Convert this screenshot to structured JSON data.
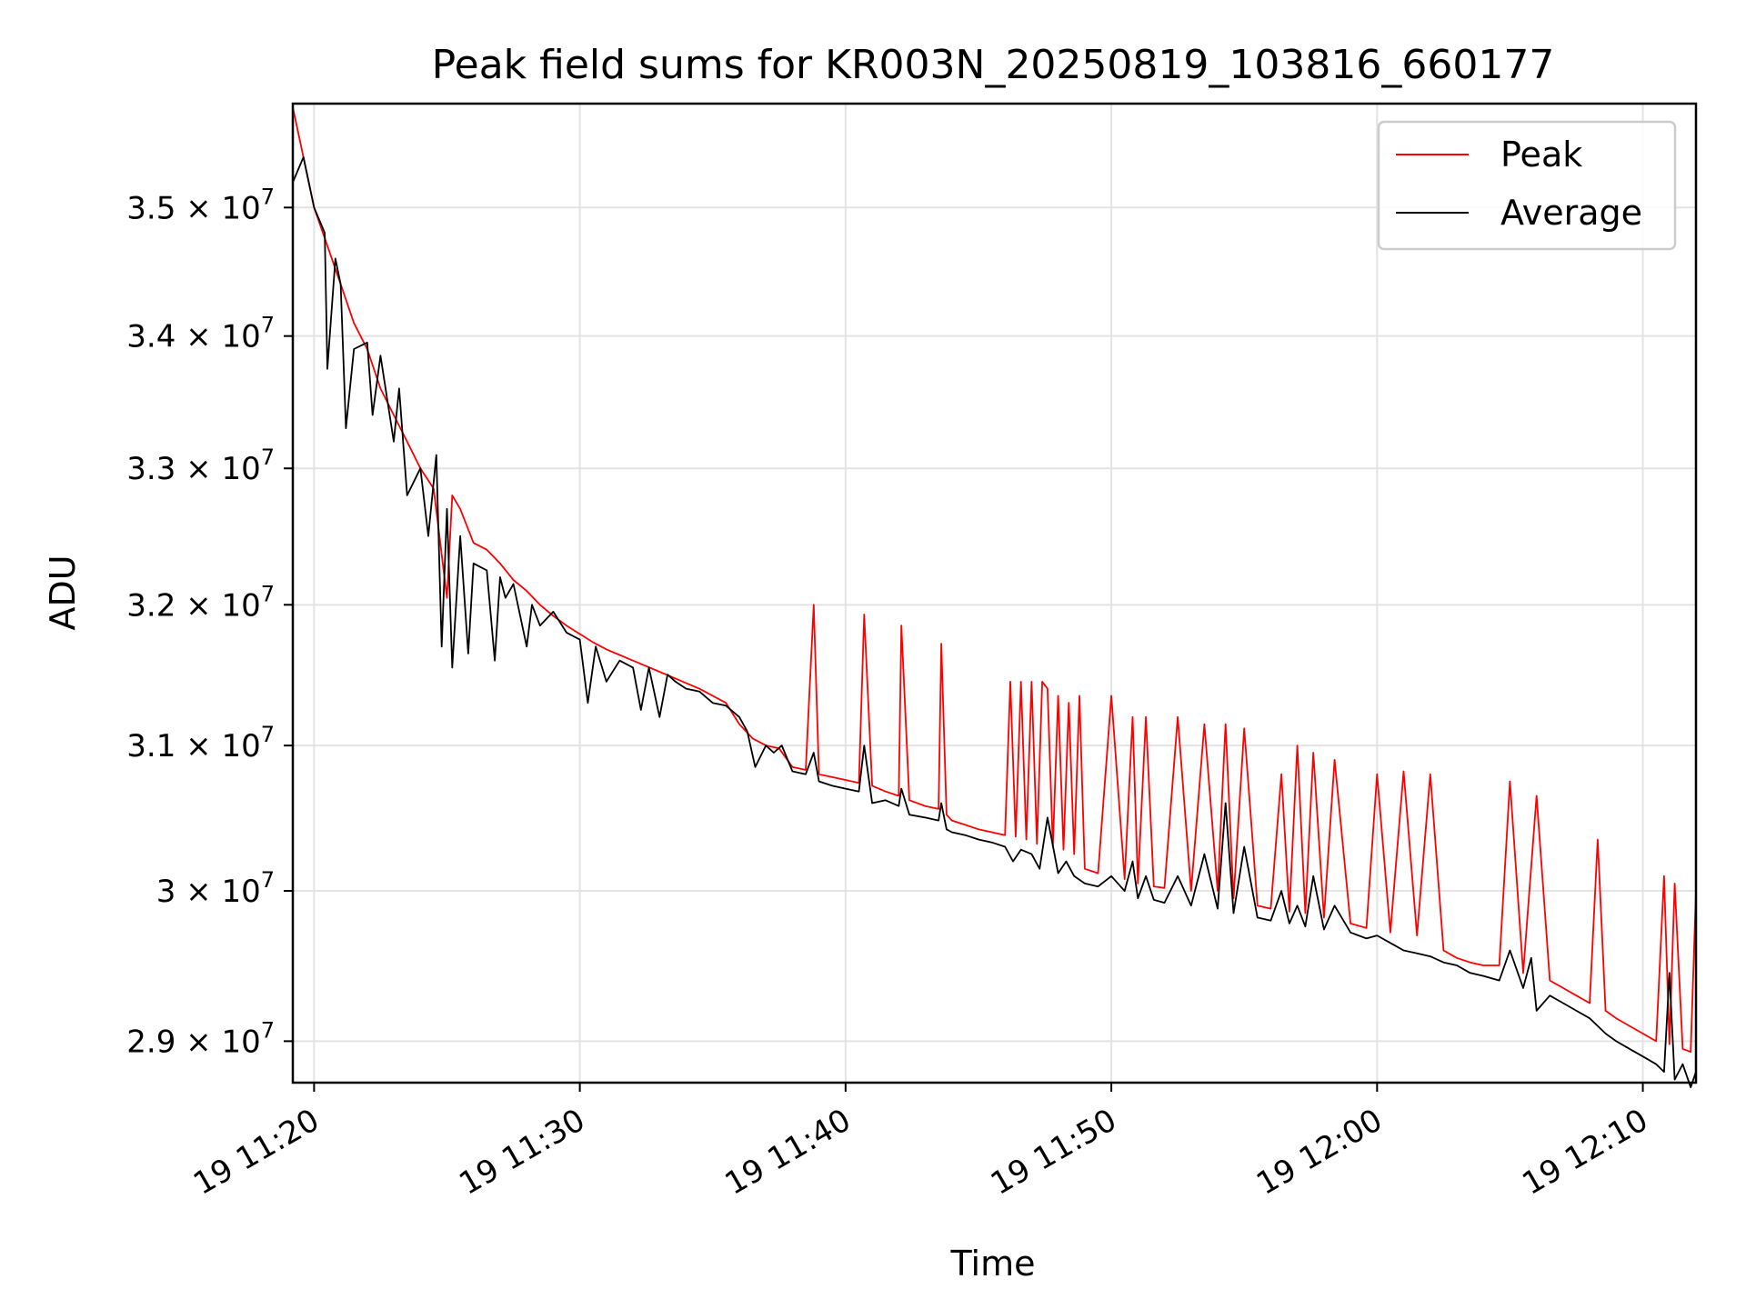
{
  "chart_data": {
    "type": "line",
    "title": "Peak field sums for KR003N_20250819_103816_660177",
    "xlabel": "Time",
    "ylabel": "ADU",
    "x_unit": "minutes after 19 11:00",
    "xlim": [
      19.2,
      72.0
    ],
    "ylim": [
      28730000,
      35830000
    ],
    "y_scale": "log",
    "grid": true,
    "legend_position": "top-right",
    "x_ticks": [
      {
        "value": 20,
        "label": "19 11:20"
      },
      {
        "value": 30,
        "label": "19 11:30"
      },
      {
        "value": 40,
        "label": "19 11:40"
      },
      {
        "value": 50,
        "label": "19 11:50"
      },
      {
        "value": 60,
        "label": "19 12:00"
      },
      {
        "value": 70,
        "label": "19 12:10"
      }
    ],
    "y_ticks": [
      {
        "value": 35000000,
        "mantissa": "3.5",
        "exponent": "7"
      },
      {
        "value": 34000000,
        "mantissa": "3.4",
        "exponent": "7"
      },
      {
        "value": 33000000,
        "mantissa": "3.3",
        "exponent": "7"
      },
      {
        "value": 32000000,
        "mantissa": "3.2",
        "exponent": "7"
      },
      {
        "value": 31000000,
        "mantissa": "3.1",
        "exponent": "7"
      },
      {
        "value": 30000000,
        "mantissa": "3",
        "exponent": "7"
      },
      {
        "value": 29000000,
        "mantissa": "2.9",
        "exponent": "7"
      }
    ],
    "series": [
      {
        "name": "Peak",
        "color": "#ff0000",
        "x": [
          19.2,
          19.6,
          20.0,
          20.5,
          21.0,
          21.5,
          22.0,
          22.5,
          23.0,
          23.5,
          24.0,
          24.5,
          25.0,
          25.2,
          25.5,
          26.0,
          26.5,
          27.0,
          27.5,
          28.0,
          28.5,
          29.0,
          29.5,
          30.0,
          30.5,
          31.0,
          31.5,
          32.0,
          32.5,
          33.0,
          33.5,
          34.0,
          34.5,
          35.0,
          35.5,
          36.0,
          36.5,
          37.0,
          37.5,
          38.0,
          38.5,
          38.8,
          39.0,
          39.5,
          40.0,
          40.5,
          40.7,
          41.0,
          41.5,
          42.0,
          42.1,
          42.4,
          43.0,
          43.5,
          43.6,
          43.8,
          44.0,
          44.5,
          45.0,
          45.5,
          46.0,
          46.2,
          46.4,
          46.6,
          46.8,
          47.0,
          47.2,
          47.4,
          47.6,
          47.8,
          48.0,
          48.2,
          48.4,
          48.6,
          48.8,
          49.0,
          49.5,
          50.0,
          50.5,
          50.8,
          51.0,
          51.3,
          51.6,
          52.0,
          52.5,
          53.0,
          53.5,
          54.0,
          54.3,
          54.6,
          55.0,
          55.5,
          56.0,
          56.4,
          56.7,
          57.0,
          57.3,
          57.6,
          58.0,
          58.4,
          59.0,
          59.6,
          60.0,
          60.5,
          61.0,
          61.5,
          62.0,
          62.5,
          63.0,
          63.5,
          64.0,
          64.6,
          65.0,
          65.5,
          66.0,
          66.5,
          67.0,
          67.5,
          68.0,
          68.3,
          68.6,
          69.0,
          69.5,
          70.0,
          70.5,
          70.8,
          71.0,
          71.2,
          71.5,
          71.8,
          72.0
        ],
        "y": [
          35800000,
          35400000,
          35000000,
          34700000,
          34400000,
          34100000,
          33900000,
          33600000,
          33400000,
          33200000,
          33000000,
          32850000,
          32050000,
          32800000,
          32700000,
          32450000,
          32400000,
          32300000,
          32180000,
          32100000,
          32000000,
          31920000,
          31850000,
          31790000,
          31730000,
          31680000,
          31640000,
          31600000,
          31560000,
          31520000,
          31480000,
          31440000,
          31400000,
          31350000,
          31300000,
          31150000,
          31050000,
          31000000,
          30980000,
          30850000,
          30830000,
          32000000,
          30800000,
          30780000,
          30760000,
          30740000,
          31930000,
          30720000,
          30680000,
          30650000,
          31850000,
          30620000,
          30580000,
          30560000,
          31720000,
          30520000,
          30480000,
          30450000,
          30420000,
          30400000,
          30380000,
          31450000,
          30370000,
          31450000,
          30350000,
          31450000,
          30320000,
          31450000,
          31400000,
          30300000,
          31350000,
          30280000,
          31300000,
          30250000,
          31350000,
          30150000,
          30120000,
          31350000,
          30080000,
          31200000,
          30050000,
          31200000,
          30030000,
          30020000,
          31200000,
          30000000,
          31150000,
          30000000,
          31150000,
          29950000,
          31120000,
          29900000,
          29880000,
          30800000,
          29860000,
          31000000,
          29850000,
          30950000,
          29820000,
          30900000,
          29780000,
          29750000,
          30800000,
          29720000,
          30820000,
          29700000,
          30800000,
          29600000,
          29550000,
          29520000,
          29500000,
          29500000,
          30750000,
          29450000,
          30650000,
          29400000,
          29350000,
          29300000,
          29250000,
          30350000,
          29200000,
          29150000,
          29100000,
          29050000,
          29000000,
          30100000,
          28980000,
          30050000,
          28950000,
          28930000,
          30000000
        ]
      },
      {
        "name": "Average",
        "color": "#000000",
        "x": [
          19.2,
          19.6,
          20.0,
          20.4,
          20.5,
          20.8,
          21.0,
          21.2,
          21.5,
          22.0,
          22.2,
          22.5,
          23.0,
          23.2,
          23.5,
          24.0,
          24.3,
          24.6,
          24.8,
          25.0,
          25.2,
          25.5,
          25.8,
          26.0,
          26.5,
          26.8,
          27.0,
          27.2,
          27.5,
          28.0,
          28.2,
          28.5,
          29.0,
          29.5,
          30.0,
          30.3,
          30.6,
          31.0,
          31.5,
          32.0,
          32.3,
          32.6,
          33.0,
          33.3,
          33.6,
          34.0,
          34.5,
          35.0,
          35.5,
          36.0,
          36.3,
          36.6,
          37.0,
          37.3,
          37.6,
          38.0,
          38.5,
          38.8,
          39.0,
          39.5,
          40.0,
          40.5,
          40.7,
          41.0,
          41.5,
          42.0,
          42.1,
          42.4,
          43.0,
          43.5,
          43.6,
          43.8,
          44.0,
          44.5,
          45.0,
          45.5,
          46.0,
          46.3,
          46.6,
          47.0,
          47.3,
          47.6,
          48.0,
          48.3,
          48.6,
          49.0,
          49.5,
          50.0,
          50.5,
          50.8,
          51.0,
          51.3,
          51.6,
          52.0,
          52.5,
          53.0,
          53.5,
          54.0,
          54.3,
          54.6,
          55.0,
          55.5,
          56.0,
          56.4,
          56.7,
          57.0,
          57.3,
          57.6,
          58.0,
          58.4,
          59.0,
          59.6,
          60.0,
          60.5,
          61.0,
          61.5,
          62.0,
          62.5,
          63.0,
          63.5,
          64.0,
          64.6,
          65.0,
          65.5,
          65.8,
          66.0,
          66.5,
          67.0,
          67.5,
          68.0,
          68.3,
          68.6,
          69.0,
          69.5,
          70.0,
          70.5,
          70.8,
          71.0,
          71.2,
          71.5,
          71.8,
          72.0
        ],
        "y": [
          35200000,
          35400000,
          35000000,
          34800000,
          33750000,
          34600000,
          34400000,
          33300000,
          33900000,
          33950000,
          33400000,
          33850000,
          33200000,
          33600000,
          32800000,
          33000000,
          32500000,
          33100000,
          31700000,
          32700000,
          31550000,
          32500000,
          31650000,
          32300000,
          32250000,
          31600000,
          32200000,
          32050000,
          32150000,
          31700000,
          32000000,
          31850000,
          31950000,
          31800000,
          31750000,
          31300000,
          31700000,
          31450000,
          31600000,
          31550000,
          31250000,
          31550000,
          31200000,
          31500000,
          31450000,
          31400000,
          31380000,
          31300000,
          31280000,
          31200000,
          31100000,
          30850000,
          31000000,
          30950000,
          31000000,
          30820000,
          30800000,
          30950000,
          30750000,
          30720000,
          30700000,
          30680000,
          31000000,
          30600000,
          30620000,
          30580000,
          30700000,
          30520000,
          30500000,
          30480000,
          30600000,
          30420000,
          30400000,
          30380000,
          30350000,
          30330000,
          30300000,
          30200000,
          30280000,
          30250000,
          30150000,
          30500000,
          30120000,
          30200000,
          30100000,
          30050000,
          30030000,
          30100000,
          30000000,
          30200000,
          29950000,
          30100000,
          29940000,
          29920000,
          30100000,
          29900000,
          30250000,
          29880000,
          30600000,
          29850000,
          30300000,
          29820000,
          29800000,
          30000000,
          29780000,
          29900000,
          29760000,
          30100000,
          29740000,
          29900000,
          29720000,
          29680000,
          29700000,
          29650000,
          29600000,
          29580000,
          29560000,
          29520000,
          29500000,
          29450000,
          29430000,
          29400000,
          29600000,
          29350000,
          29550000,
          29200000,
          29300000,
          29250000,
          29200000,
          29150000,
          29100000,
          29050000,
          29000000,
          28950000,
          28900000,
          28850000,
          28800000,
          29450000,
          28750000,
          28850000,
          28700000,
          28800000
        ]
      }
    ]
  }
}
